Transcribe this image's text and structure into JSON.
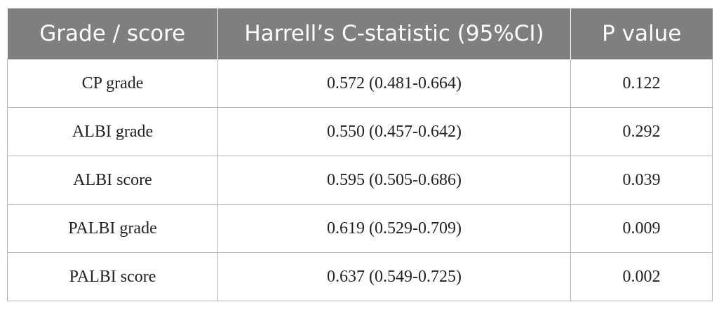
{
  "table": {
    "headers": [
      "Grade / score",
      "Harrell’s C-statistic (95%CI)",
      "P value"
    ],
    "rows": [
      [
        "CP grade",
        "0.572 (0.481-0.664)",
        "0.122"
      ],
      [
        "ALBI grade",
        "0.550 (0.457-0.642)",
        "0.292"
      ],
      [
        "ALBI score",
        "0.595 (0.505-0.686)",
        "0.039"
      ],
      [
        "PALBI grade",
        "0.619 (0.529-0.709)",
        "0.009"
      ],
      [
        "PALBI score",
        "0.637 (0.549-0.725)",
        "0.002"
      ]
    ]
  },
  "colors": {
    "header_bg": "#7f7f7f",
    "header_text": "#ffffff",
    "grid": "#b3b3b3"
  }
}
